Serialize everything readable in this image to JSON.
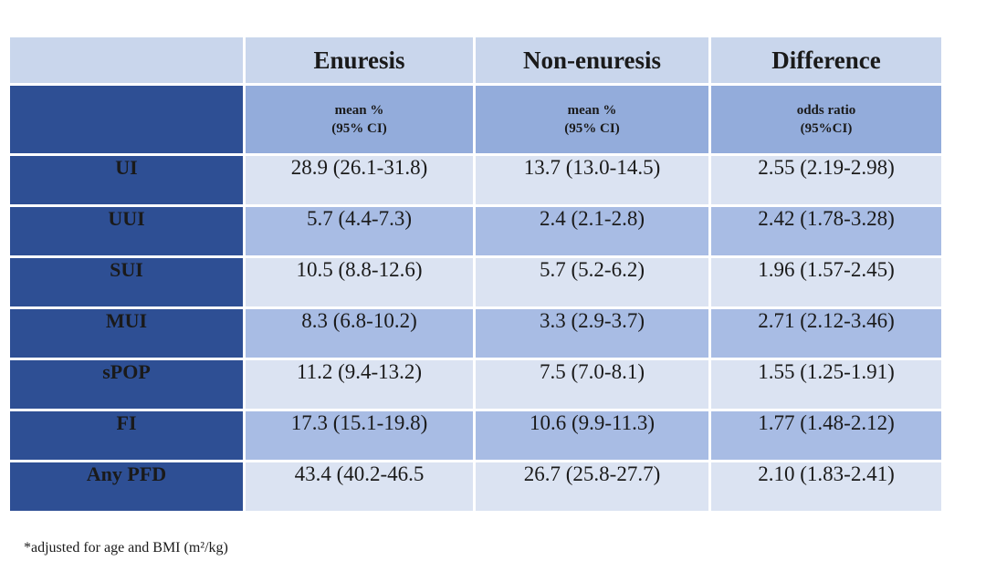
{
  "header": {
    "columns": [
      "Enuresis",
      "Non-enuresis",
      "Difference"
    ],
    "subheaders": [
      [
        "mean %",
        "(95% CI)"
      ],
      [
        "mean %",
        "(95% CI)"
      ],
      [
        "odds ratio",
        "(95%CI)"
      ]
    ]
  },
  "table": {
    "rows": [
      [
        "UI",
        "28.9 (26.1-31.8)",
        "13.7 (13.0-14.5)",
        "2.55 (2.19-2.98)"
      ],
      [
        "UUI",
        "5.7 (4.4-7.3)",
        "2.4 (2.1-2.8)",
        "2.42 (1.78-3.28)"
      ],
      [
        "SUI",
        "10.5 (8.8-12.6)",
        "5.7 (5.2-6.2)",
        "1.96 (1.57-2.45)"
      ],
      [
        "MUI",
        "8.3 (6.8-10.2)",
        "3.3 (2.9-3.7)",
        "2.71 (2.12-3.46)"
      ],
      [
        "sPOP",
        "11.2 (9.4-13.2)",
        "7.5 (7.0-8.1)",
        "1.55 (1.25-1.91)"
      ],
      [
        "FI",
        "17.3 (15.1-19.8)",
        "10.6 (9.9-11.3)",
        "1.77 (1.48-2.12)"
      ],
      [
        "Any PFD",
        "43.4 (40.2-46.5",
        "26.7 (25.8-27.7)",
        "2.10 (1.83-2.41)"
      ]
    ]
  },
  "footnote": "*adjusted for age and BMI (m²/kg)"
}
